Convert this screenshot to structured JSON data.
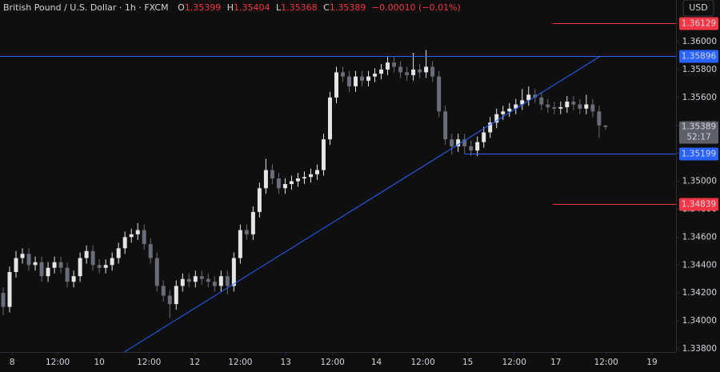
{
  "chart_data": {
    "type": "candlestick",
    "title": "British Pound / U.S. Dollar · 1h · FXCM",
    "ohlc_labels": [
      "O",
      "H",
      "L",
      "C"
    ],
    "change": "−0.00010 (−0.01%)",
    "currency": "USD",
    "countdown": "52:17",
    "up_color": "#e6e6e6",
    "down_color": "#6a6d78",
    "value_color": "#f23645",
    "ylim": [
      1.33777,
      1.36298
    ],
    "yticks": [
      {
        "value": 1.338,
        "label": "1.33800"
      },
      {
        "value": 1.34,
        "label": "1.34000"
      },
      {
        "value": 1.342,
        "label": "1.34200"
      },
      {
        "value": 1.344,
        "label": "1.34400"
      },
      {
        "value": 1.346,
        "label": "1.34600"
      },
      {
        "value": 1.348,
        "label": "1.34800"
      },
      {
        "value": 1.35,
        "label": "1.35000"
      },
      {
        "value": 1.352,
        "label": "1.35200"
      },
      {
        "value": 1.354,
        "label": "1.35400"
      },
      {
        "value": 1.356,
        "label": "1.35600"
      },
      {
        "value": 1.358,
        "label": "1.35800"
      },
      {
        "value": 1.36,
        "label": "1.36000"
      }
    ],
    "xlim": [
      -0.5,
      105
    ],
    "xticks": [
      {
        "value": 1.4,
        "label": "8"
      },
      {
        "value": 8.5,
        "label": "12:00"
      },
      {
        "value": 15,
        "label": "10"
      },
      {
        "value": 22.75,
        "label": "12:00"
      },
      {
        "value": 29.9,
        "label": "12"
      },
      {
        "value": 37,
        "label": "12:00"
      },
      {
        "value": 44.1,
        "label": "13"
      },
      {
        "value": 51.4,
        "label": "12:00"
      },
      {
        "value": 58.25,
        "label": "14"
      },
      {
        "value": 65.5,
        "label": "12:00"
      },
      {
        "value": 72.5,
        "label": "15"
      },
      {
        "value": 79.75,
        "label": "12:00"
      },
      {
        "value": 86.25,
        "label": "17"
      },
      {
        "value": 94.1,
        "label": "12:00"
      },
      {
        "value": 101.25,
        "label": "19"
      }
    ],
    "levels": [
      {
        "value": 1.36129,
        "color": "#f23645",
        "from": 85.75
      },
      {
        "value": 1.35896,
        "color": "#2962ff",
        "from": -0.5
      },
      {
        "value": 1.35199,
        "color": "#2962ff",
        "from": 72
      },
      {
        "value": 1.34839,
        "color": "#f23645",
        "from": 85.75
      }
    ],
    "trendline": {
      "color": "#2962ff",
      "x": [
        18.9,
        93.2
      ],
      "y": [
        1.33777,
        1.35896
      ]
    },
    "ohlc": [
      [
        1.342,
        1.3424,
        1.3404,
        1.341
      ],
      [
        1.341,
        1.3439,
        1.3406,
        1.3435
      ],
      [
        1.3435,
        1.345,
        1.3431,
        1.3445
      ],
      [
        1.3445,
        1.3452,
        1.3441,
        1.3448
      ],
      [
        1.3448,
        1.3452,
        1.3436,
        1.344
      ],
      [
        1.344,
        1.3446,
        1.3436,
        1.3442
      ],
      [
        1.3442,
        1.3446,
        1.3428,
        1.3432
      ],
      [
        1.3432,
        1.3442,
        1.3428,
        1.3438
      ],
      [
        1.3438,
        1.3446,
        1.3434,
        1.3442
      ],
      [
        1.3442,
        1.3446,
        1.3434,
        1.3438
      ],
      [
        1.3438,
        1.3442,
        1.3424,
        1.3428
      ],
      [
        1.3428,
        1.3436,
        1.3424,
        1.3432
      ],
      [
        1.3432,
        1.3449,
        1.3428,
        1.3445
      ],
      [
        1.3445,
        1.3454,
        1.3441,
        1.345
      ],
      [
        1.345,
        1.3454,
        1.3436,
        1.344
      ],
      [
        1.344,
        1.3444,
        1.3434,
        1.3438
      ],
      [
        1.3438,
        1.3444,
        1.3434,
        1.344
      ],
      [
        1.344,
        1.3449,
        1.3436,
        1.3445
      ],
      [
        1.3445,
        1.3456,
        1.3441,
        1.3452
      ],
      [
        1.3452,
        1.3464,
        1.3448,
        1.346
      ],
      [
        1.346,
        1.3466,
        1.3456,
        1.3462
      ],
      [
        1.3462,
        1.347,
        1.3458,
        1.3465
      ],
      [
        1.3465,
        1.3469,
        1.3451,
        1.3455
      ],
      [
        1.3455,
        1.3459,
        1.3441,
        1.3445
      ],
      [
        1.3445,
        1.3449,
        1.3421,
        1.3425
      ],
      [
        1.3425,
        1.3429,
        1.3414,
        1.3418
      ],
      [
        1.3418,
        1.3422,
        1.3402,
        1.3412
      ],
      [
        1.3412,
        1.3429,
        1.3408,
        1.3425
      ],
      [
        1.3425,
        1.3434,
        1.3421,
        1.343
      ],
      [
        1.343,
        1.3434,
        1.3424,
        1.3428
      ],
      [
        1.3428,
        1.3436,
        1.3424,
        1.3432
      ],
      [
        1.3432,
        1.3436,
        1.3426,
        1.343
      ],
      [
        1.343,
        1.3434,
        1.3424,
        1.3428
      ],
      [
        1.3428,
        1.3432,
        1.3421,
        1.3425
      ],
      [
        1.3425,
        1.3436,
        1.3421,
        1.3432
      ],
      [
        1.3432,
        1.3436,
        1.3419,
        1.3425
      ],
      [
        1.3425,
        1.3449,
        1.3421,
        1.3445
      ],
      [
        1.3445,
        1.3469,
        1.3441,
        1.3465
      ],
      [
        1.3465,
        1.3469,
        1.3458,
        1.3462
      ],
      [
        1.3462,
        1.3482,
        1.3458,
        1.3478
      ],
      [
        1.3478,
        1.3499,
        1.3474,
        1.3495
      ],
      [
        1.3495,
        1.3516,
        1.3491,
        1.3508
      ],
      [
        1.3508,
        1.3512,
        1.3498,
        1.3502
      ],
      [
        1.3502,
        1.3506,
        1.3491,
        1.3495
      ],
      [
        1.3495,
        1.3502,
        1.3491,
        1.3498
      ],
      [
        1.3498,
        1.3504,
        1.3494,
        1.35
      ],
      [
        1.35,
        1.3506,
        1.3496,
        1.3502
      ],
      [
        1.3502,
        1.3507,
        1.3498,
        1.3503
      ],
      [
        1.3503,
        1.3509,
        1.3499,
        1.3505
      ],
      [
        1.3505,
        1.3512,
        1.3501,
        1.3508
      ],
      [
        1.3508,
        1.3534,
        1.3504,
        1.353
      ],
      [
        1.353,
        1.3564,
        1.3526,
        1.356
      ],
      [
        1.356,
        1.3582,
        1.3556,
        1.3578
      ],
      [
        1.3578,
        1.3582,
        1.3571,
        1.3575
      ],
      [
        1.3575,
        1.3579,
        1.3564,
        1.3568
      ],
      [
        1.3568,
        1.3579,
        1.3564,
        1.3575
      ],
      [
        1.3575,
        1.3579,
        1.3568,
        1.3572
      ],
      [
        1.3572,
        1.3579,
        1.3568,
        1.3575
      ],
      [
        1.3575,
        1.3581,
        1.3571,
        1.3577
      ],
      [
        1.3577,
        1.3584,
        1.3573,
        1.358
      ],
      [
        1.358,
        1.3589,
        1.3576,
        1.3585
      ],
      [
        1.3585,
        1.3589,
        1.3578,
        1.3582
      ],
      [
        1.3582,
        1.3586,
        1.3574,
        1.3578
      ],
      [
        1.3578,
        1.3582,
        1.3572,
        1.3576
      ],
      [
        1.3576,
        1.3592,
        1.3572,
        1.358
      ],
      [
        1.358,
        1.3584,
        1.3574,
        1.3578
      ],
      [
        1.3578,
        1.3594,
        1.3574,
        1.3582
      ],
      [
        1.3582,
        1.3586,
        1.3571,
        1.3575
      ],
      [
        1.3575,
        1.3579,
        1.3546,
        1.355
      ],
      [
        1.355,
        1.3554,
        1.3526,
        1.353
      ],
      [
        1.353,
        1.3534,
        1.3519,
        1.3525
      ],
      [
        1.3525,
        1.3534,
        1.3521,
        1.353
      ],
      [
        1.353,
        1.3534,
        1.352,
        1.3525
      ],
      [
        1.3525,
        1.3529,
        1.3518,
        1.3522
      ],
      [
        1.3522,
        1.3532,
        1.3518,
        1.3528
      ],
      [
        1.3528,
        1.3539,
        1.3524,
        1.3535
      ],
      [
        1.3535,
        1.3546,
        1.3531,
        1.3542
      ],
      [
        1.3542,
        1.3552,
        1.3538,
        1.3548
      ],
      [
        1.3548,
        1.3554,
        1.3544,
        1.355
      ],
      [
        1.355,
        1.3556,
        1.3546,
        1.3552
      ],
      [
        1.3552,
        1.3559,
        1.3548,
        1.3555
      ],
      [
        1.3555,
        1.3566,
        1.3551,
        1.3558
      ],
      [
        1.3558,
        1.3568,
        1.3554,
        1.3562
      ],
      [
        1.3562,
        1.3566,
        1.3556,
        1.356
      ],
      [
        1.356,
        1.3564,
        1.3551,
        1.3555
      ],
      [
        1.3555,
        1.3559,
        1.3549,
        1.3553
      ],
      [
        1.3553,
        1.3557,
        1.3548,
        1.3552
      ],
      [
        1.3552,
        1.3557,
        1.3548,
        1.3553
      ],
      [
        1.3553,
        1.3561,
        1.3549,
        1.3557
      ],
      [
        1.3557,
        1.3561,
        1.3551,
        1.3555
      ],
      [
        1.3555,
        1.3559,
        1.3548,
        1.3552
      ],
      [
        1.3552,
        1.3562,
        1.3548,
        1.3555
      ],
      [
        1.3555,
        1.3559,
        1.3546,
        1.355
      ],
      [
        1.355,
        1.3554,
        1.3531,
        1.354
      ],
      [
        1.35399,
        1.35404,
        1.35368,
        1.35389
      ]
    ]
  }
}
